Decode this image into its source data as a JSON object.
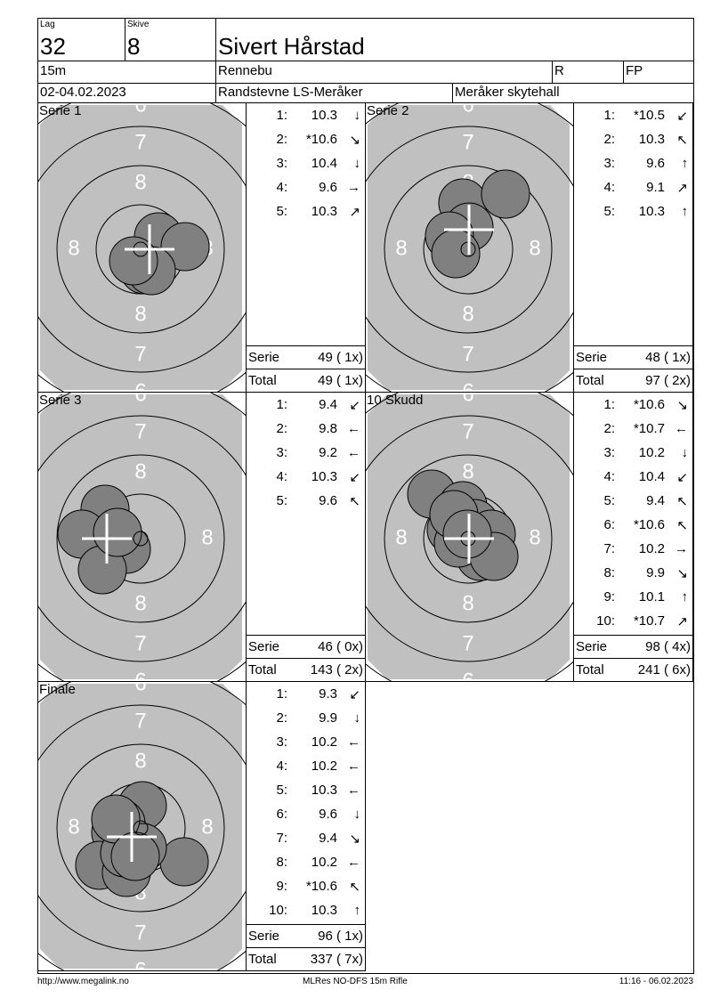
{
  "header": {
    "lag_label": "Lag",
    "lag": "32",
    "skive_label": "Skive",
    "skive": "8",
    "name": "Sivert Hårstad",
    "distance": "15m",
    "club": "Rennebu",
    "class": "R",
    "category": "FP",
    "date": "02-04.02.2023",
    "event": "Randstevne LS-Meråker",
    "venue": "Meråker skytehall"
  },
  "target_labels": {
    "r6": "6",
    "r7": "7",
    "r8": "8"
  },
  "colors": {
    "target_face": "#c0c0c0",
    "shot": "#808080",
    "ring": "#000000",
    "label": "#ffffff"
  },
  "panels": [
    {
      "title": "Serie 1",
      "shots": [
        {
          "n": "1:",
          "v": "10.3",
          "a": "↓"
        },
        {
          "n": "2:",
          "v": "*10.6",
          "a": "↘"
        },
        {
          "n": "3:",
          "v": "10.4",
          "a": "↓"
        },
        {
          "n": "4:",
          "v": "9.6",
          "a": "→"
        },
        {
          "n": "5:",
          "v": "10.3",
          "a": "↗"
        }
      ],
      "serie_label": "Serie",
      "serie": "49 ( 1x)",
      "total_label": "Total",
      "total": "49 ( 1x)"
    },
    {
      "title": "Serie 2",
      "shots": [
        {
          "n": "1:",
          "v": "*10.5",
          "a": "↙"
        },
        {
          "n": "2:",
          "v": "10.3",
          "a": "↖"
        },
        {
          "n": "3:",
          "v": "9.6",
          "a": "↑"
        },
        {
          "n": "4:",
          "v": "9.1",
          "a": "↗"
        },
        {
          "n": "5:",
          "v": "10.3",
          "a": "↑"
        }
      ],
      "serie_label": "Serie",
      "serie": "48 ( 1x)",
      "total_label": "Total",
      "total": "97 ( 2x)"
    },
    {
      "title": "Serie 3",
      "shots": [
        {
          "n": "1:",
          "v": "9.4",
          "a": "↙"
        },
        {
          "n": "2:",
          "v": "9.8",
          "a": "←"
        },
        {
          "n": "3:",
          "v": "9.2",
          "a": "←"
        },
        {
          "n": "4:",
          "v": "10.3",
          "a": "↙"
        },
        {
          "n": "5:",
          "v": "9.6",
          "a": "↖"
        }
      ],
      "serie_label": "Serie",
      "serie": "46 ( 0x)",
      "total_label": "Total",
      "total": "143 ( 2x)"
    },
    {
      "title": "10 Skudd",
      "shots": [
        {
          "n": "1:",
          "v": "*10.6",
          "a": "↘"
        },
        {
          "n": "2:",
          "v": "*10.7",
          "a": "←"
        },
        {
          "n": "3:",
          "v": "10.2",
          "a": "↓"
        },
        {
          "n": "4:",
          "v": "10.4",
          "a": "↙"
        },
        {
          "n": "5:",
          "v": "9.4",
          "a": "↖"
        },
        {
          "n": "6:",
          "v": "*10.6",
          "a": "↖"
        },
        {
          "n": "7:",
          "v": "10.2",
          "a": "→"
        },
        {
          "n": "8:",
          "v": "9.9",
          "a": "↘"
        },
        {
          "n": "9:",
          "v": "10.1",
          "a": "↑"
        },
        {
          "n": "10:",
          "v": "*10.7",
          "a": "↗"
        }
      ],
      "serie_label": "Serie",
      "serie": "98 ( 4x)",
      "total_label": "Total",
      "total": "241 ( 6x)"
    },
    {
      "title": "Finale",
      "shots": [
        {
          "n": "1:",
          "v": "9.3",
          "a": "↙"
        },
        {
          "n": "2:",
          "v": "9.9",
          "a": "↓"
        },
        {
          "n": "3:",
          "v": "10.2",
          "a": "←"
        },
        {
          "n": "4:",
          "v": "10.2",
          "a": "←"
        },
        {
          "n": "5:",
          "v": "10.3",
          "a": "←"
        },
        {
          "n": "6:",
          "v": "9.6",
          "a": "↓"
        },
        {
          "n": "7:",
          "v": "9.4",
          "a": "↘"
        },
        {
          "n": "8:",
          "v": "10.2",
          "a": "←"
        },
        {
          "n": "9:",
          "v": "*10.6",
          "a": "↖"
        },
        {
          "n": "10:",
          "v": "10.3",
          "a": "↑"
        }
      ],
      "serie_label": "Serie",
      "serie": "96 ( 1x)",
      "total_label": "Total",
      "total": "337 ( 7x)"
    }
  ],
  "footer": {
    "left": "http://www.megalink.no",
    "center": "MLRes NO-DFS 15m Rifle",
    "right": "11:16 - 06.02.2023"
  }
}
